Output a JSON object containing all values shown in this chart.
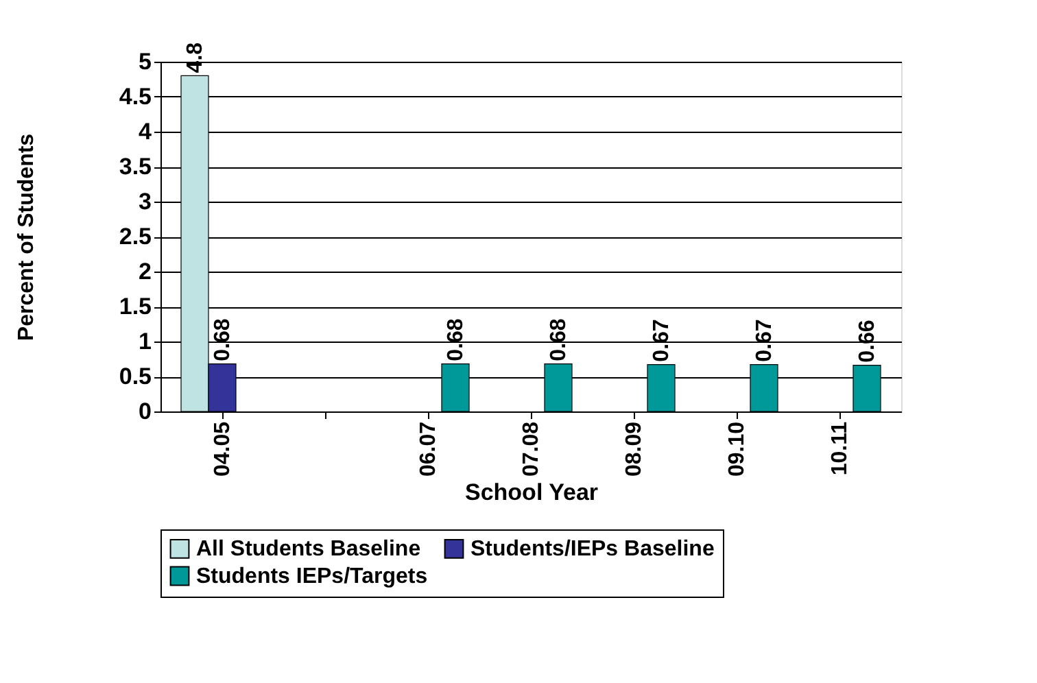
{
  "chart_data": {
    "type": "bar",
    "xlabel": "School Year",
    "ylabel": "Percent of Students",
    "categories": [
      "04.05",
      null,
      "06.07",
      "07.08",
      "08.09",
      "09.10",
      "10.11"
    ],
    "series": [
      {
        "name": "All Students Baseline",
        "color": "#bfe3e3",
        "values": [
          4.8,
          null,
          null,
          null,
          null,
          null,
          null
        ]
      },
      {
        "name": "Students/IEPs Baseline",
        "color": "#333399",
        "values": [
          0.68,
          null,
          null,
          null,
          null,
          null,
          null
        ]
      },
      {
        "name": "Students IEPs/Targets",
        "color": "#009999",
        "values": [
          null,
          null,
          0.68,
          0.68,
          0.67,
          0.67,
          0.66
        ]
      }
    ],
    "ylim": [
      0,
      5
    ],
    "yticks": [
      0,
      0.5,
      1,
      1.5,
      2,
      2.5,
      3,
      3.5,
      4,
      4.5,
      5
    ],
    "grid": "y",
    "legend": "bottom",
    "data_labels": true
  }
}
